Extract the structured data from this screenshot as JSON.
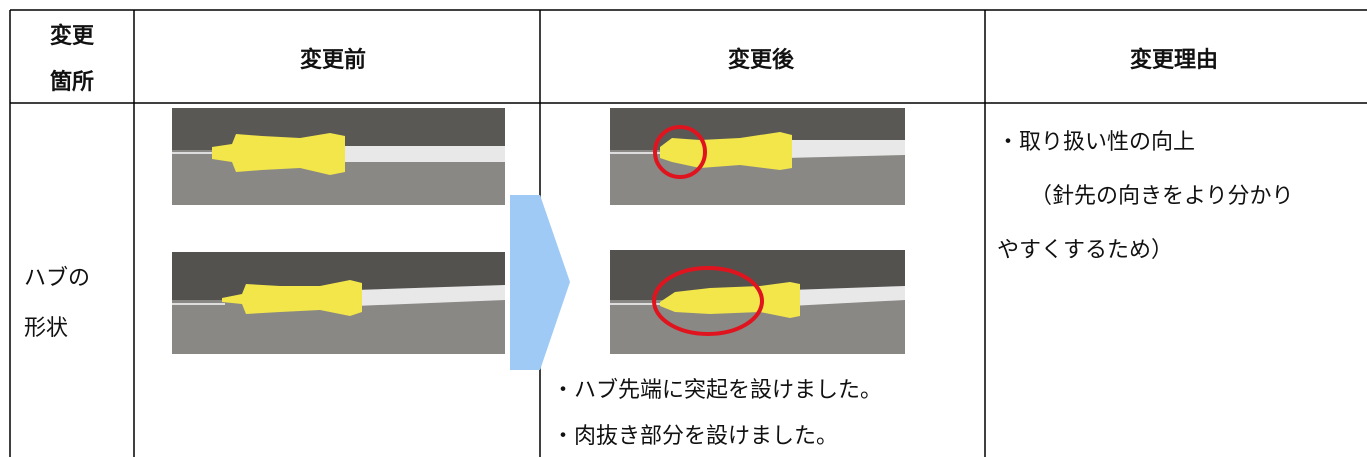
{
  "table": {
    "header": [
      [
        "変更",
        "箇所"
      ],
      "変更前",
      "変更後",
      "変更理由"
    ],
    "rows": [
      {
        "location": [
          "ハブの",
          "形状"
        ],
        "after_notes": [
          "・ハブ先端に突起を設けました。",
          "・肉抜き部分を設けました。"
        ],
        "reason": [
          "・取り扱い性の向上",
          "（針先の向きをより分かり",
          "やすくするため）"
        ]
      }
    ]
  }
}
